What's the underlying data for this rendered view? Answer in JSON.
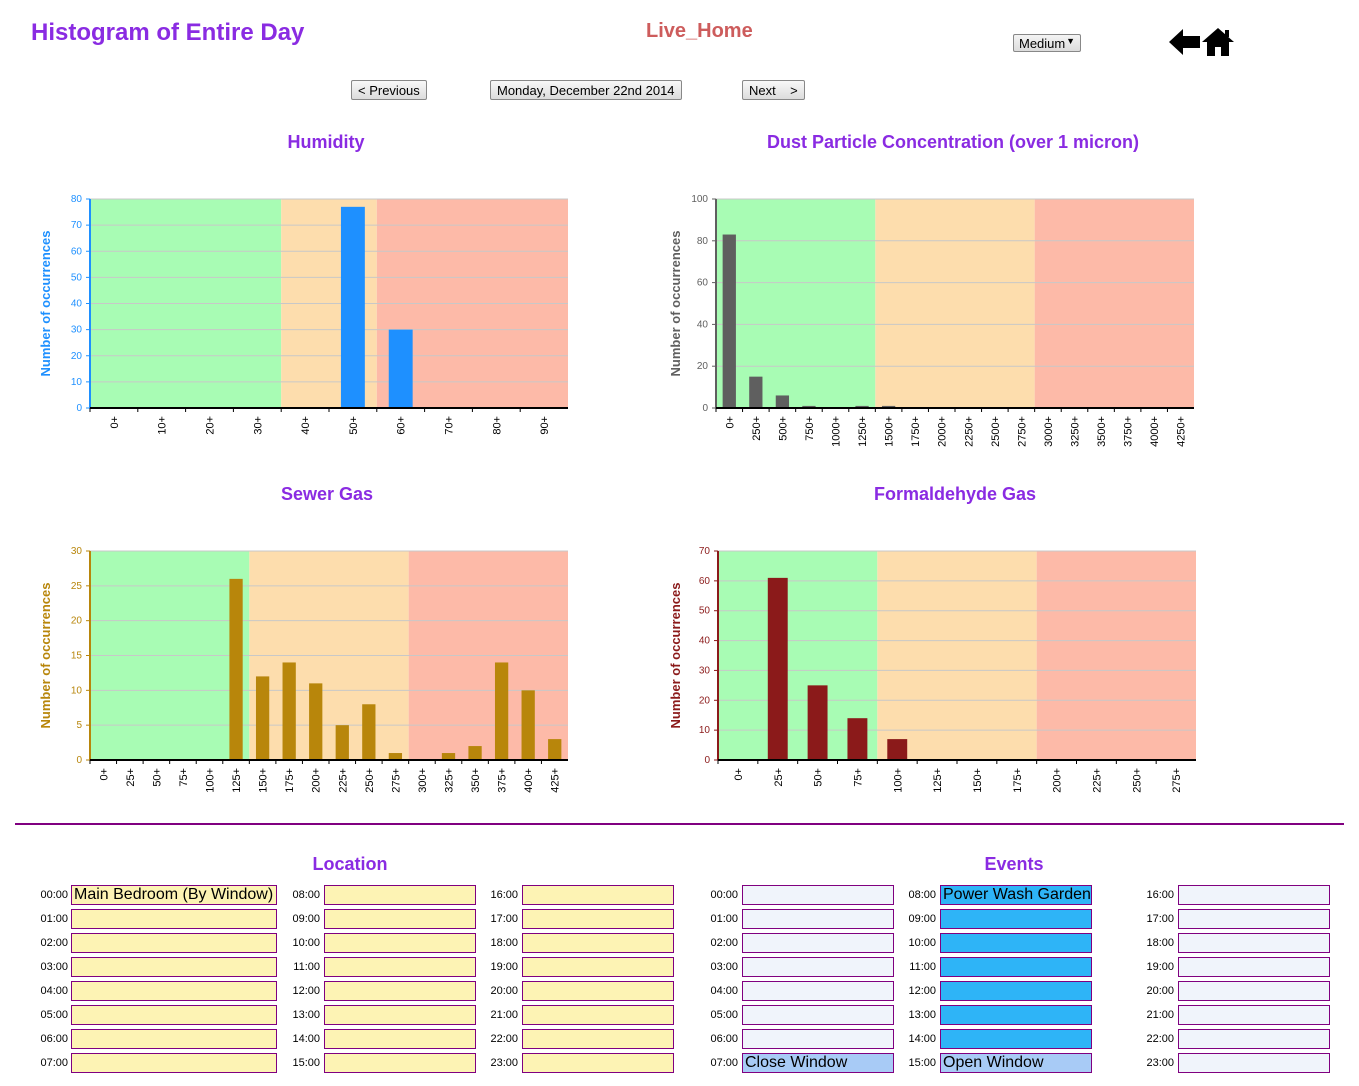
{
  "header": {
    "title": "Histogram of Entire Day",
    "app_name": "Live_Home",
    "size_select": "Medium",
    "prev_label": "< Previous",
    "date_label": "Monday, December 22nd 2014",
    "next_label": "Next    >"
  },
  "colors": {
    "title": "#8a2be2",
    "app_name": "#cd5c5c",
    "zone_green": "#a8fcb4",
    "zone_orange": "#fdddad",
    "zone_red": "#fdbaa8",
    "divider": "#800080"
  },
  "chart_data": [
    {
      "type": "bar",
      "title": "Humidity",
      "ylabel": "Number of occurrences",
      "ylim": [
        0,
        80
      ],
      "yticks": [
        0,
        10,
        20,
        30,
        40,
        50,
        60,
        70,
        80
      ],
      "categories": [
        "0+",
        "10+",
        "20+",
        "30+",
        "40+",
        "50+",
        "60+",
        "70+",
        "80+",
        "90+"
      ],
      "values": [
        0,
        0,
        0,
        0,
        0,
        77,
        30,
        0,
        0,
        0
      ],
      "zones": [
        {
          "color": "green",
          "from": "0+",
          "to": "40+"
        },
        {
          "color": "orange",
          "from": "40+",
          "to": "60+"
        },
        {
          "color": "red",
          "from": "60+",
          "to": "end"
        }
      ],
      "bar_color": "#1e90ff",
      "axis_color": "#1e90ff",
      "grid": true
    },
    {
      "type": "bar",
      "title": "Dust Particle Concentration (over 1 micron)",
      "ylabel": "Number of occurrences",
      "ylim": [
        0,
        100
      ],
      "yticks": [
        0,
        20,
        40,
        60,
        80,
        100
      ],
      "categories": [
        "0+",
        "250+",
        "500+",
        "750+",
        "1000+",
        "1250+",
        "1500+",
        "1750+",
        "2000+",
        "2250+",
        "2500+",
        "2750+",
        "3000+",
        "3250+",
        "3500+",
        "3750+",
        "4000+",
        "4250+"
      ],
      "values": [
        83,
        15,
        6,
        1,
        0,
        1,
        1,
        0,
        0,
        0,
        0,
        0,
        0,
        0,
        0,
        0,
        0,
        0
      ],
      "zones": [
        {
          "color": "green",
          "from": "0+",
          "to": "1500+"
        },
        {
          "color": "orange",
          "from": "1500+",
          "to": "3000+"
        },
        {
          "color": "red",
          "from": "3000+",
          "to": "end"
        }
      ],
      "bar_color": "#5f5f5f",
      "axis_color": "#5f5f5f",
      "grid": true
    },
    {
      "type": "bar",
      "title": "Sewer Gas",
      "ylabel": "Number of occurrences",
      "ylim": [
        0,
        30
      ],
      "yticks": [
        0,
        5,
        10,
        15,
        20,
        25,
        30
      ],
      "categories": [
        "0+",
        "25+",
        "50+",
        "75+",
        "100+",
        "125+",
        "150+",
        "175+",
        "200+",
        "225+",
        "250+",
        "275+",
        "300+",
        "325+",
        "350+",
        "375+",
        "400+",
        "425+"
      ],
      "values": [
        0,
        0,
        0,
        0,
        0,
        26,
        12,
        14,
        11,
        5,
        8,
        1,
        0,
        1,
        2,
        14,
        10,
        3
      ],
      "zones": [
        {
          "color": "green",
          "from": "0+",
          "to": "150+"
        },
        {
          "color": "orange",
          "from": "150+",
          "to": "300+"
        },
        {
          "color": "red",
          "from": "300+",
          "to": "end"
        }
      ],
      "bar_color": "#b8860b",
      "axis_color": "#b8860b",
      "grid": true
    },
    {
      "type": "bar",
      "title": "Formaldehyde Gas",
      "ylabel": "Number of occurrences",
      "ylim": [
        0,
        70
      ],
      "yticks": [
        0,
        10,
        20,
        30,
        40,
        50,
        60,
        70
      ],
      "categories": [
        "0+",
        "25+",
        "50+",
        "75+",
        "100+",
        "125+",
        "150+",
        "175+",
        "200+",
        "225+",
        "250+",
        "275+"
      ],
      "values": [
        0,
        61,
        25,
        14,
        7,
        0,
        0,
        0,
        0,
        0,
        0,
        0
      ],
      "zones": [
        {
          "color": "green",
          "from": "0+",
          "to": "100+"
        },
        {
          "color": "orange",
          "from": "100+",
          "to": "200+"
        },
        {
          "color": "red",
          "from": "200+",
          "to": "end"
        }
      ],
      "bar_color": "#8b1a1a",
      "axis_color": "#8b1a1a",
      "grid": true
    }
  ],
  "location": {
    "title": "Location",
    "slots": [
      {
        "time": "00:00",
        "value": "Main Bedroom (By Window)"
      },
      {
        "time": "01:00",
        "value": ""
      },
      {
        "time": "02:00",
        "value": ""
      },
      {
        "time": "03:00",
        "value": ""
      },
      {
        "time": "04:00",
        "value": ""
      },
      {
        "time": "05:00",
        "value": ""
      },
      {
        "time": "06:00",
        "value": ""
      },
      {
        "time": "07:00",
        "value": ""
      },
      {
        "time": "08:00",
        "value": ""
      },
      {
        "time": "09:00",
        "value": ""
      },
      {
        "time": "10:00",
        "value": ""
      },
      {
        "time": "11:00",
        "value": ""
      },
      {
        "time": "12:00",
        "value": ""
      },
      {
        "time": "13:00",
        "value": ""
      },
      {
        "time": "14:00",
        "value": ""
      },
      {
        "time": "15:00",
        "value": ""
      },
      {
        "time": "16:00",
        "value": ""
      },
      {
        "time": "17:00",
        "value": ""
      },
      {
        "time": "18:00",
        "value": ""
      },
      {
        "time": "19:00",
        "value": ""
      },
      {
        "time": "20:00",
        "value": ""
      },
      {
        "time": "21:00",
        "value": ""
      },
      {
        "time": "22:00",
        "value": ""
      },
      {
        "time": "23:00",
        "value": ""
      }
    ]
  },
  "events": {
    "title": "Events",
    "slots": [
      {
        "time": "00:00",
        "value": "",
        "state": "empty"
      },
      {
        "time": "01:00",
        "value": "",
        "state": "empty"
      },
      {
        "time": "02:00",
        "value": "",
        "state": "empty"
      },
      {
        "time": "03:00",
        "value": "",
        "state": "empty"
      },
      {
        "time": "04:00",
        "value": "",
        "state": "empty"
      },
      {
        "time": "05:00",
        "value": "",
        "state": "empty"
      },
      {
        "time": "06:00",
        "value": "",
        "state": "empty"
      },
      {
        "time": "07:00",
        "value": "Close Window",
        "state": "light"
      },
      {
        "time": "08:00",
        "value": "Power Wash Garden Wall",
        "state": "active"
      },
      {
        "time": "09:00",
        "value": "",
        "state": "active"
      },
      {
        "time": "10:00",
        "value": "",
        "state": "active"
      },
      {
        "time": "11:00",
        "value": "",
        "state": "active"
      },
      {
        "time": "12:00",
        "value": "",
        "state": "active"
      },
      {
        "time": "13:00",
        "value": "",
        "state": "active"
      },
      {
        "time": "14:00",
        "value": "",
        "state": "active"
      },
      {
        "time": "15:00",
        "value": "Open Window",
        "state": "light"
      },
      {
        "time": "16:00",
        "value": "",
        "state": "empty"
      },
      {
        "time": "17:00",
        "value": "",
        "state": "empty"
      },
      {
        "time": "18:00",
        "value": "",
        "state": "empty"
      },
      {
        "time": "19:00",
        "value": "",
        "state": "empty"
      },
      {
        "time": "20:00",
        "value": "",
        "state": "empty"
      },
      {
        "time": "21:00",
        "value": "",
        "state": "empty"
      },
      {
        "time": "22:00",
        "value": "",
        "state": "empty"
      },
      {
        "time": "23:00",
        "value": "",
        "state": "empty"
      }
    ]
  }
}
